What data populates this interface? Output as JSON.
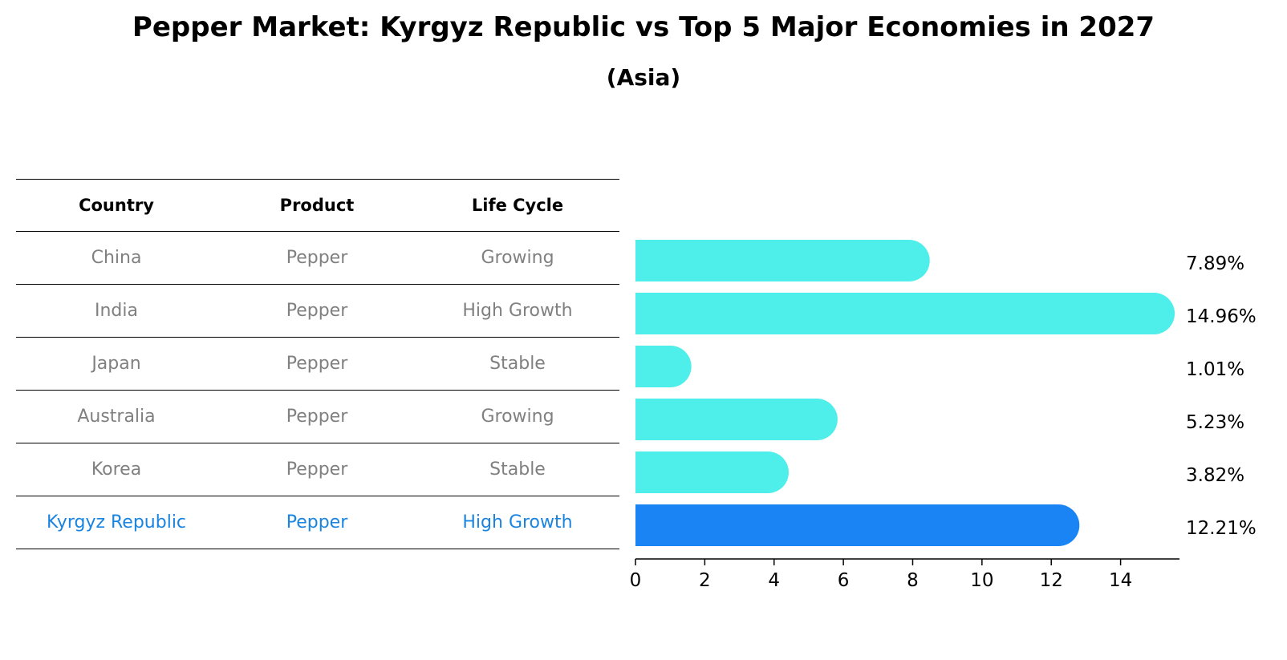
{
  "title": "Pepper Market: Kyrgyz Republic vs Top 5 Major Economies in 2027",
  "subtitle": "(Asia)",
  "table": {
    "headers": [
      "Country",
      "Product",
      "Life Cycle"
    ],
    "rows": [
      {
        "country": "China",
        "product": "Pepper",
        "life_cycle": "Growing"
      },
      {
        "country": "India",
        "product": "Pepper",
        "life_cycle": "High Growth"
      },
      {
        "country": "Japan",
        "product": "Pepper",
        "life_cycle": "Stable"
      },
      {
        "country": "Australia",
        "product": "Pepper",
        "life_cycle": "Growing"
      },
      {
        "country": "Korea",
        "product": "Pepper",
        "life_cycle": "Stable"
      },
      {
        "country": "Kyrgyz Republic",
        "product": "Pepper",
        "life_cycle": "High Growth"
      }
    ]
  },
  "chart_data": {
    "type": "bar",
    "orientation": "horizontal",
    "categories": [
      "China",
      "India",
      "Japan",
      "Australia",
      "Korea",
      "Kyrgyz Republic"
    ],
    "values": [
      7.89,
      14.96,
      1.01,
      5.23,
      3.82,
      12.21
    ],
    "value_labels": [
      "7.89%",
      "14.96%",
      "1.01%",
      "5.23%",
      "3.82%",
      "12.21%"
    ],
    "xticks": [
      0,
      2,
      4,
      6,
      8,
      10,
      12,
      14
    ],
    "xlim": [
      0,
      15.7
    ],
    "highlight_index": 5,
    "colors": {
      "default": "#4eeeea",
      "highlight": "#1a84f5",
      "highlight_text": "#1a84e0",
      "muted_text": "#808080"
    }
  }
}
